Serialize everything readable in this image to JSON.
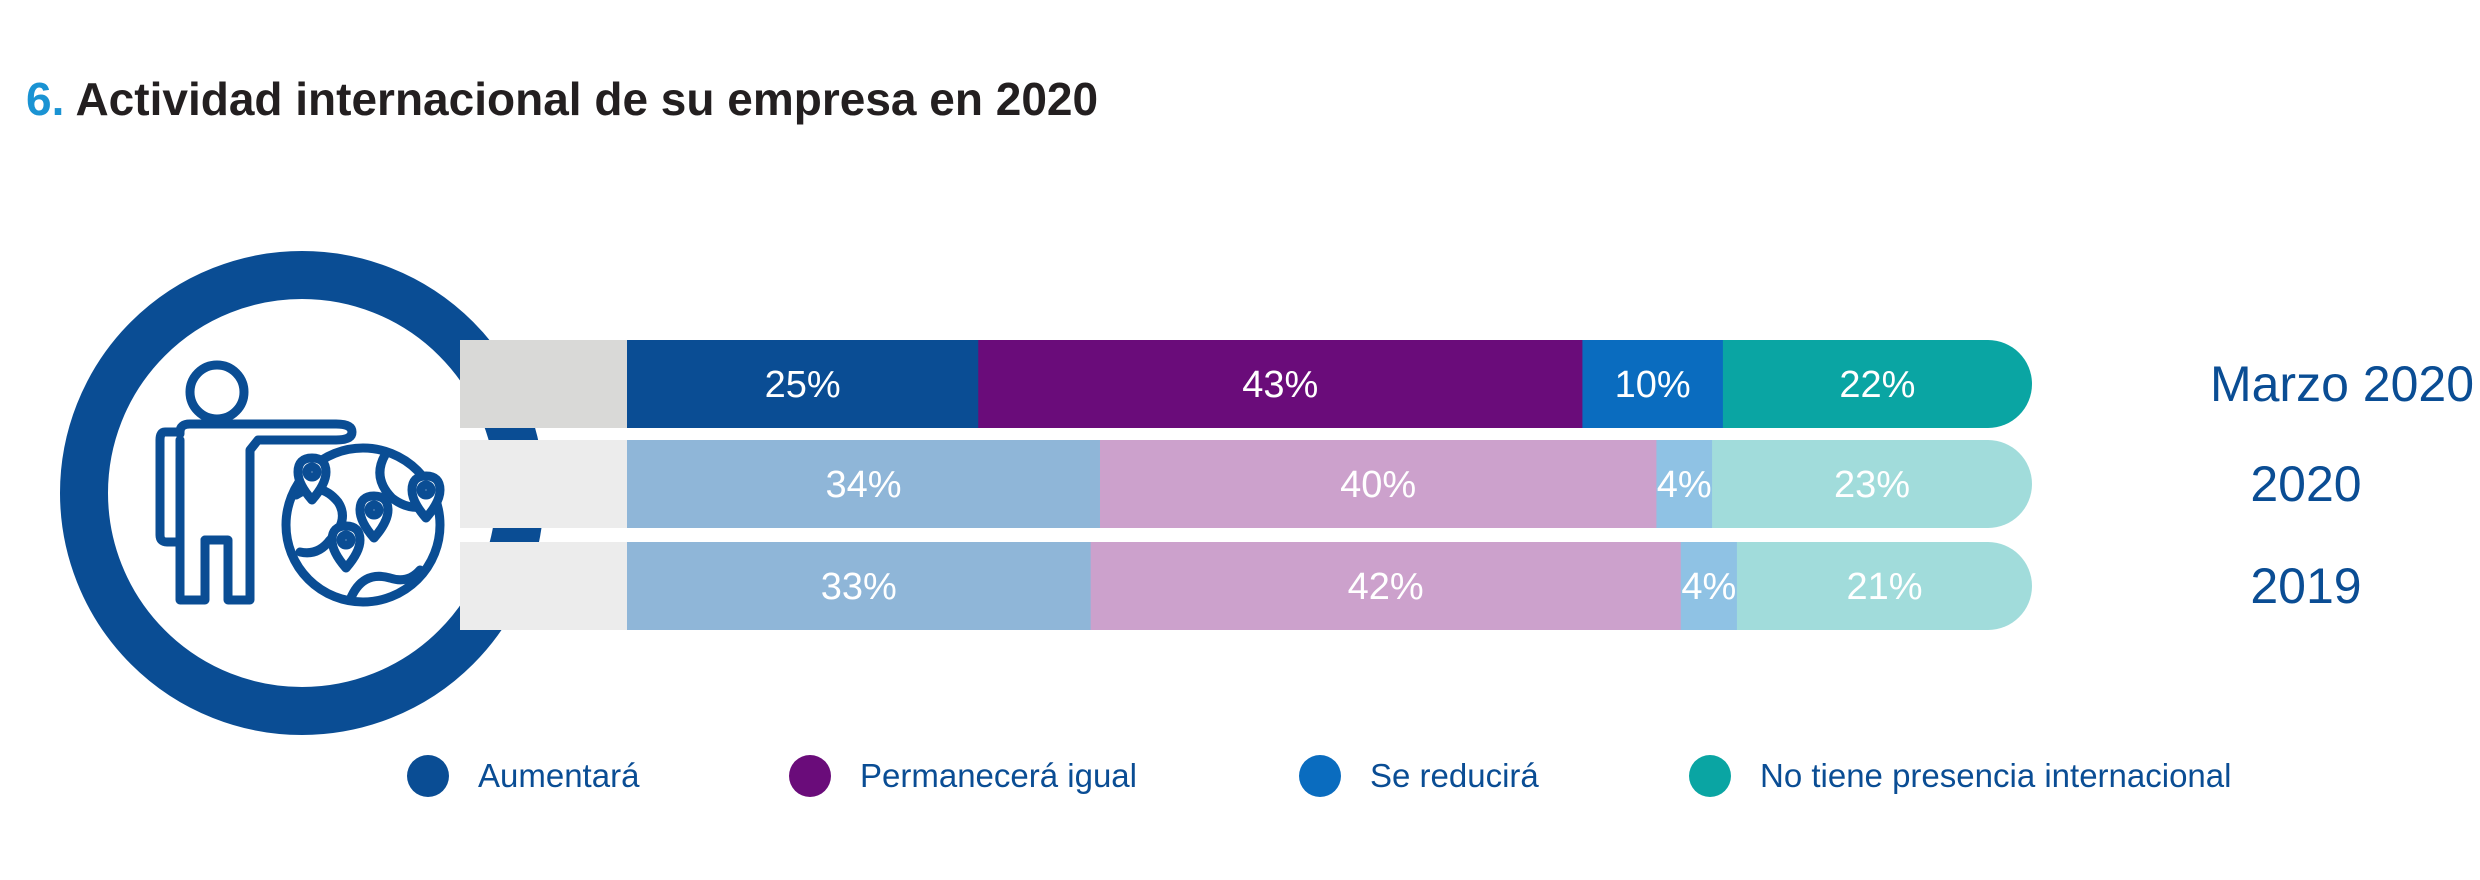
{
  "title": {
    "number": "6.",
    "text": "Actividad internacional de su empresa en 2020"
  },
  "chart_data": {
    "type": "bar",
    "orientation": "horizontal",
    "stacked": true,
    "title": "Actividad internacional de su empresa en 2020",
    "rows": [
      {
        "label": "Marzo 2020",
        "values": [
          25,
          43,
          10,
          22
        ],
        "labels": [
          "25%",
          "43%",
          "10%",
          "22%"
        ],
        "style": "solid"
      },
      {
        "label": "2020",
        "values": [
          34,
          40,
          4,
          23
        ],
        "labels": [
          "34%",
          "40%",
          "4%",
          "23%"
        ],
        "style": "light"
      },
      {
        "label": "2019",
        "values": [
          33,
          42,
          4,
          21
        ],
        "labels": [
          "33%",
          "42%",
          "4%",
          "21%"
        ],
        "style": "light"
      }
    ],
    "series": [
      {
        "name": "Aumentará",
        "color": "#0a4d94",
        "light_color": "#8fb6d8"
      },
      {
        "name": "Permanecerá igual",
        "color": "#6a0c7a",
        "light_color": "#cca1cc"
      },
      {
        "name": "Se reducirá",
        "color": "#0a6cbf",
        "light_color": "#8fc2e4"
      },
      {
        "name": "No tiene presencia internacional",
        "color": "#0aa5a3",
        "light_color": "#a1dcdb"
      }
    ],
    "legend_position": "bottom"
  },
  "colors": {
    "title_number": "#1a93d3",
    "title_text": "#231f20",
    "icon_blue": "#0a4d94",
    "row_label": "#0a4d94",
    "stub_dark": "#d9d9d7",
    "stub_light": "#ececec"
  },
  "icon": "person-pointing-globe-icon"
}
